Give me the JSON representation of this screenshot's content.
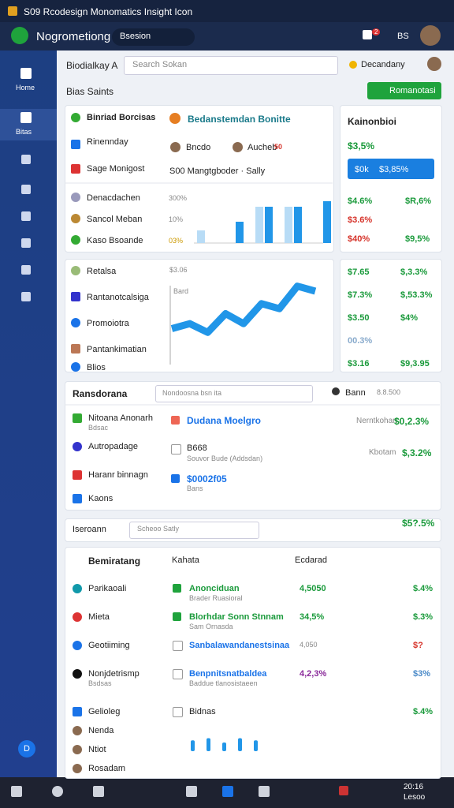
{
  "window": {
    "title": "S09 Rcodesign Monomatics Insight Icon"
  },
  "header": {
    "app_name": "Nogrometiong",
    "search": "Bsesion",
    "badge": "2",
    "code": "BS"
  },
  "sidebar": {
    "items": [
      "Home",
      "Bitas"
    ],
    "bottom": "D"
  },
  "toolbar": {
    "title": "Biodialkay A",
    "search": "Search Sokan",
    "user": "Decandany"
  },
  "section": {
    "title": "Bias Saints",
    "button": "Romanotasi"
  },
  "panel1": {
    "rows": [
      "Binriad Borcisas",
      "Rinennday",
      "Sage Monigost"
    ],
    "heading": "Bedanstemdan Bonitte",
    "person_a": "Bncdo",
    "person_b": "Aucheb",
    "badge": "50",
    "detail": "S00 Mangtgboder · Sally",
    "list": [
      "Denacdachen",
      "Sancol Meban",
      "Kaso Bsoande"
    ],
    "chart": {
      "tick_labels": [
        "300%",
        "10%",
        "03%"
      ],
      "ylim": [
        0,
        60
      ],
      "dark": [
        0,
        27,
        46,
        46,
        53
      ],
      "light": [
        16,
        0,
        46,
        46,
        0
      ]
    }
  },
  "side1": {
    "title": "Kainonbioi",
    "value": "$3,5%",
    "button_a": "$0k",
    "button_b": "$3,85%",
    "rows": [
      [
        "$4.6%",
        "$R,6%"
      ],
      [
        "$3.6%",
        ""
      ],
      [
        "$40%",
        "$9,5%"
      ]
    ]
  },
  "panel2": {
    "list": [
      "Retalsa",
      "Rantanotcalsiga",
      "Promoiotra",
      "Pantankimatian",
      "Blios"
    ],
    "chart_label": "$3.06",
    "chart_sub": "Bard",
    "chart": {
      "ylim": [
        0,
        60
      ],
      "values": [
        18,
        22,
        15,
        30,
        22,
        38,
        34,
        52,
        48
      ]
    }
  },
  "side2": {
    "rows": [
      [
        "$7.65",
        "$,3.3%"
      ],
      [
        "$7.3%",
        "$,53.3%"
      ],
      [
        "$3.50",
        "$4%"
      ],
      [
        "00.3%",
        ""
      ],
      [
        "$3.16",
        "$9,3.95"
      ]
    ]
  },
  "panel3": {
    "title": "Ransdorana",
    "search": "Nondoosna  bsn  ita",
    "filter": "Bann",
    "range": "8.8.500",
    "left": [
      "Nitoana Anonarh",
      "Autropadage",
      "Haranr binnagn",
      "Kaons"
    ],
    "left_sub": "Bdsac",
    "mid": [
      [
        "Dudana Moelgro",
        ""
      ],
      [
        "B668",
        "Souvor Bude (Addsdan)"
      ],
      [
        "$0002f05",
        "Bans"
      ]
    ],
    "right": [
      [
        "Nerntkohan",
        "$0,2.3%"
      ],
      [
        "Kbotam",
        "$,3.2%"
      ],
      [
        "",
        "$5?.5%"
      ]
    ]
  },
  "search2": {
    "label": "Iseroann",
    "query": "Scheoo Satly"
  },
  "panel4": {
    "headers": [
      "Bemiratang",
      "Kahata",
      "Ecdarad"
    ],
    "rows": [
      [
        "Parikaoali",
        "",
        "Anonciduan",
        "Brader Ruasioral",
        "4,5050",
        "$.4%"
      ],
      [
        "Mieta",
        "",
        "Blorhdar Sonn Stnnam",
        "Sam Ornasda",
        "34,5%",
        "$.3%"
      ],
      [
        "Geotiiming",
        "",
        "Sanbalawandanestsinaa",
        "",
        "4,050",
        "$?"
      ],
      [
        "Nonjdetrismp",
        "Bsdsas",
        "Benpnitsnatbaldea",
        "Baddue tlanosistaeen",
        "4,2,3%",
        "$3%"
      ],
      [
        "Gelioleg",
        "",
        "Bidnas",
        "",
        "",
        "$.4%"
      ]
    ],
    "people": [
      "Nenda",
      "Ntiot",
      "Rosadam"
    ],
    "mini": {
      "ylim": [
        0,
        8
      ],
      "values": [
        5,
        6,
        4,
        6,
        5
      ]
    }
  },
  "taskbar": {
    "time": "20:16",
    "date": "Lesoo"
  }
}
